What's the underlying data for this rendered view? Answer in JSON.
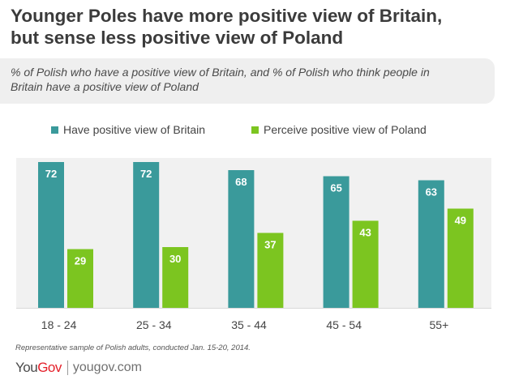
{
  "header": {
    "title_lines": [
      "Younger Poles have more positive view of Britain,",
      "but sense less positive view of Poland"
    ],
    "subtitle_lines": [
      "% of Polish who  have a positive view  of Britain, and % of Polish who think people in",
      "Britain have a positive view of Poland"
    ]
  },
  "colors": {
    "britain": "#3a9a9b",
    "poland": "#7cc520",
    "plot_background": "#f1f1f1"
  },
  "footer": {
    "note": "Representative sample of Polish adults, conducted Jan. 15-20, 2014.",
    "brand_you": "You",
    "brand_gov": "Gov",
    "brand_url": "yougov.com"
  },
  "chart_data": {
    "type": "bar",
    "title": "Younger Poles have more positive view of Britain, but sense less positive view of Poland",
    "subtitle": "% of Polish who  have a positive view  of Britain, and % of Polish who think people in Britain have a positive view of Poland",
    "xlabel": "",
    "ylabel": "",
    "categories": [
      "18 - 24",
      "25 - 34",
      "35 - 44",
      "45 - 54",
      "55+"
    ],
    "series": [
      {
        "name": "Have positive view of Britain",
        "values": [
          72,
          72,
          68,
          65,
          63
        ]
      },
      {
        "name": "Perceive positive view of Poland",
        "values": [
          29,
          30,
          37,
          43,
          49
        ]
      }
    ],
    "ylim": [
      0,
      75
    ],
    "grid": false,
    "legend_position": "top"
  }
}
